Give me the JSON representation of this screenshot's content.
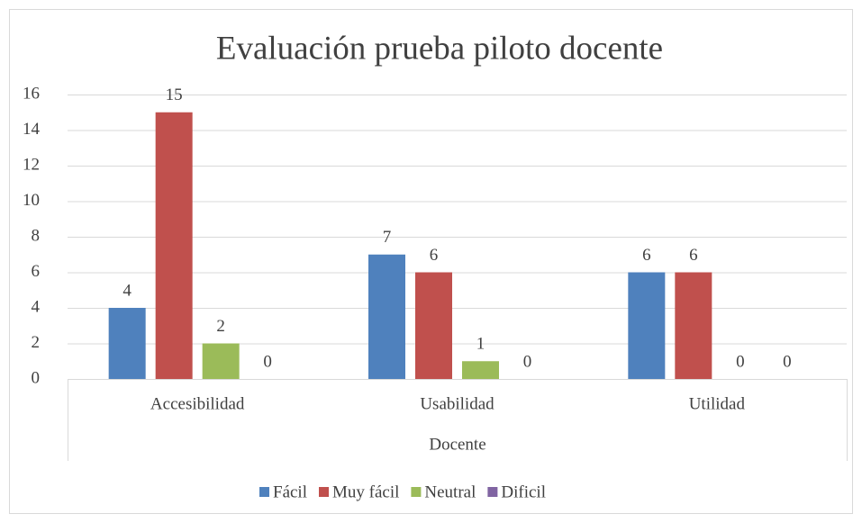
{
  "chart_data": {
    "type": "bar",
    "title": "Evaluación prueba piloto docente",
    "x_label": "Docente",
    "categories": [
      "Accesibilidad",
      "Usabilidad",
      "Utilidad"
    ],
    "series": [
      {
        "name": "Fácil",
        "color": "#4f81bd",
        "values": [
          4,
          7,
          6
        ]
      },
      {
        "name": "Muy fácil",
        "color": "#c0504d",
        "values": [
          15,
          6,
          6
        ]
      },
      {
        "name": "Neutral",
        "color": "#9bbb59",
        "values": [
          2,
          1,
          0
        ]
      },
      {
        "name": "Dificil",
        "color": "#8064a2",
        "values": [
          0,
          0,
          0
        ]
      }
    ],
    "ylim": [
      0,
      16
    ],
    "yticks": [
      0,
      2,
      4,
      6,
      8,
      10,
      12,
      14,
      16
    ],
    "grid": true,
    "legend": "bottom"
  }
}
